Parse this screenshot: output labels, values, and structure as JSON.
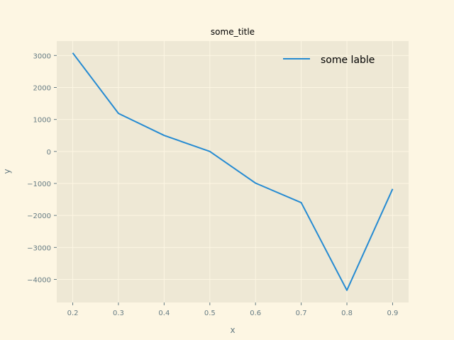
{
  "chart_data": {
    "type": "line",
    "title": "some_title",
    "xlabel": "x",
    "ylabel": "y",
    "x": [
      0.2,
      0.3,
      0.4,
      0.5,
      0.6,
      0.7,
      0.8,
      0.9
    ],
    "xticks": [
      "0.2",
      "0.3",
      "0.4",
      "0.5",
      "0.6",
      "0.7",
      "0.8",
      "0.9"
    ],
    "yticks": [
      "−4000",
      "−3000",
      "−2000",
      "−1000",
      "0",
      "1000",
      "2000",
      "3000"
    ],
    "ytick_values": [
      -4000,
      -3000,
      -2000,
      -1000,
      0,
      1000,
      2000,
      3000
    ],
    "xlim": [
      0.165,
      0.935
    ],
    "ylim": [
      -4720,
      3450
    ],
    "grid": true,
    "legend_position": "top-right",
    "series": [
      {
        "name": "some lable",
        "color": "#268bd2",
        "values": [
          3080,
          1190,
          500,
          0,
          -990,
          -1600,
          -4340,
          -1170
        ]
      }
    ],
    "colors": {
      "figure_bg": "#fdf6e3",
      "axes_bg": "#eee8d5",
      "grid": "#fdf6e3",
      "tick": "#657b83"
    }
  }
}
